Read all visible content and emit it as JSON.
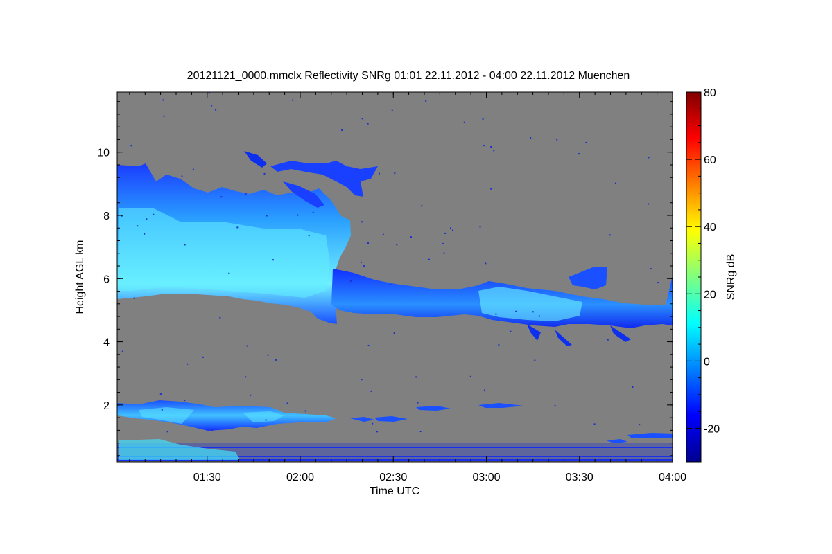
{
  "chart_data": {
    "type": "heatmap",
    "title": "20121121_0000.mmclx Reflectivity SNRg   01:01 22.11.2012 - 04:00 22.11.2012 Muenchen",
    "xlabel": "Time UTC",
    "ylabel": "Height AGL km",
    "x_ticks": [
      "01:30",
      "02:00",
      "02:30",
      "03:00",
      "03:30",
      "04:00"
    ],
    "x_tick_values_h": [
      1.5,
      2.0,
      2.5,
      3.0,
      3.5,
      4.0
    ],
    "xlim_h": [
      1.0167,
      4.0
    ],
    "y_ticks": [
      "2",
      "4",
      "6",
      "8",
      "10"
    ],
    "y_tick_values": [
      2,
      4,
      6,
      8,
      10
    ],
    "ylim": [
      0.2,
      11.9
    ],
    "background_color": "#808080",
    "colorbar": {
      "label": "SNRg dB",
      "range": [
        -30,
        80
      ],
      "ticks": [
        "-20",
        "0",
        "20",
        "40",
        "60",
        "80"
      ],
      "tick_values": [
        -20,
        0,
        20,
        40,
        60,
        80
      ],
      "colormap": "jet"
    },
    "features": [
      {
        "name": "upper ice cloud",
        "time_h": [
          1.02,
          2.22
        ],
        "top_km": [
          9.6,
          8.5
        ],
        "base_km": [
          5.4,
          4.6
        ],
        "snr_db": [
          -25,
          12
        ]
      },
      {
        "name": "mid-level cloud layer",
        "time_h": [
          2.15,
          4.0
        ],
        "top_km": [
          6.2,
          5.2
        ],
        "base_km": [
          5.1,
          4.5
        ],
        "snr_db": [
          -25,
          8
        ]
      },
      {
        "name": "low cloud layer",
        "time_h": [
          1.02,
          2.5
        ],
        "top_km": [
          2.1,
          1.6
        ],
        "base_km": [
          1.2,
          1.4
        ],
        "snr_db": [
          -25,
          5
        ]
      },
      {
        "name": "near-surface clutter",
        "time_h": [
          1.02,
          4.0
        ],
        "top_km": [
          0.7,
          0.5
        ],
        "base_km": [
          0.2,
          0.2
        ],
        "snr_db": [
          -25,
          10
        ]
      }
    ]
  }
}
